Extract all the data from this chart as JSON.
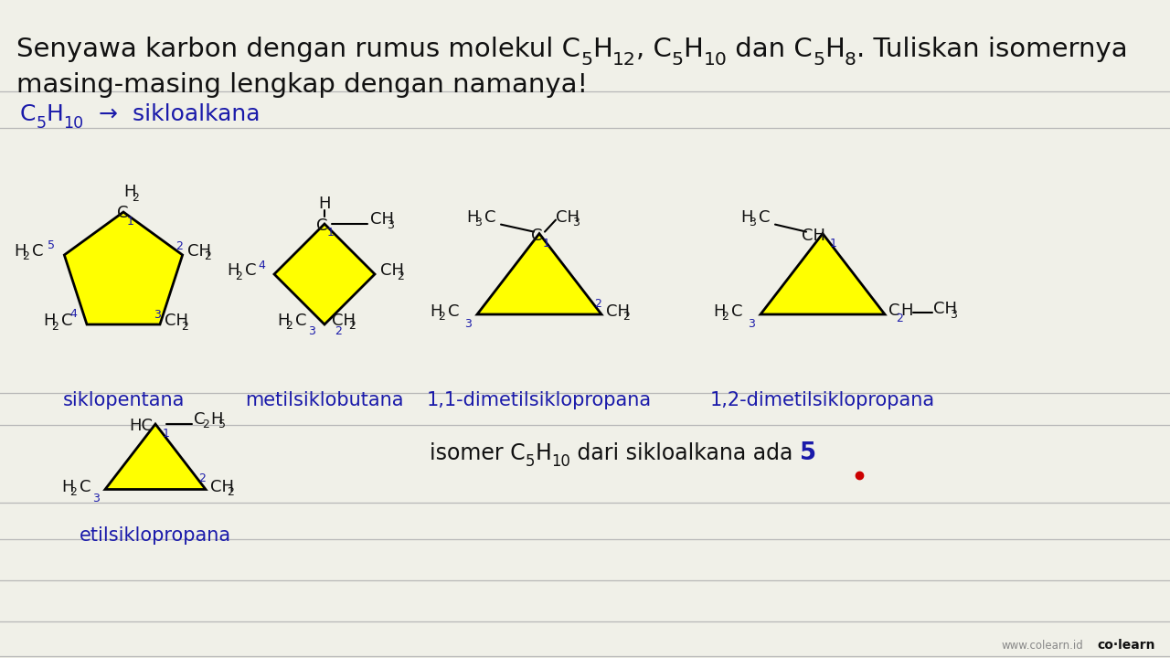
{
  "bg_color": "#f0f0e8",
  "line_color": "#b8b8b8",
  "blue_color": "#1a1aaa",
  "yellow_color": "#ffff00",
  "black_color": "#111111",
  "red_color": "#cc0000",
  "gray_color": "#888888",
  "names": [
    "siklopentana",
    "metilsiklobutana",
    "1,1-dimetilsiklopropana",
    "1,2-dimetilsiklopropana",
    "etilsiklopropana"
  ]
}
